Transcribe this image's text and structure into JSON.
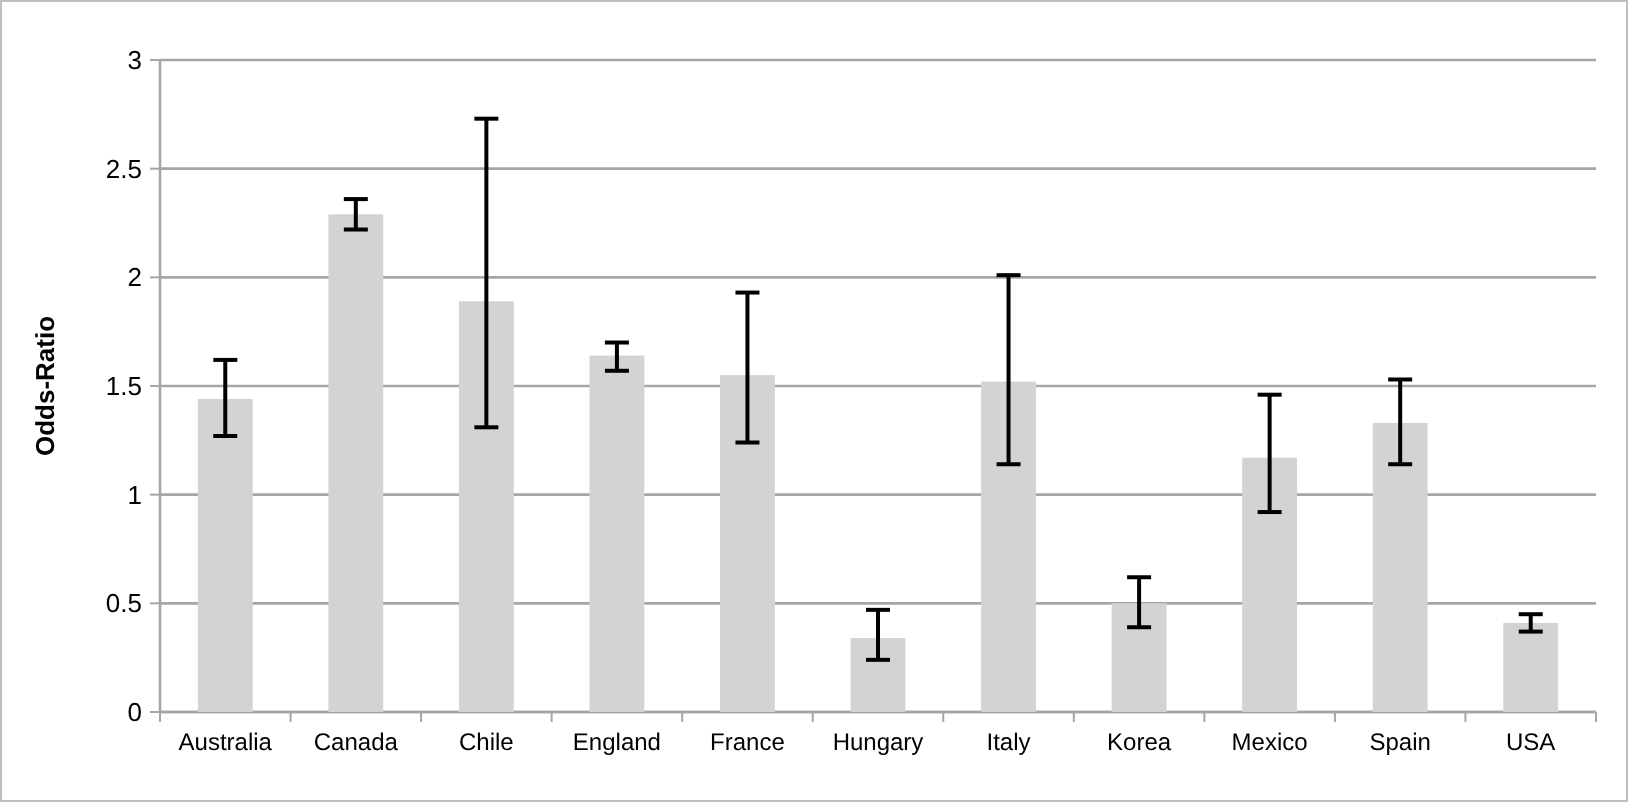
{
  "chart_data": {
    "type": "bar",
    "ylabel": "Odds-Ratio",
    "categories": [
      "Australia",
      "Canada",
      "Chile",
      "England",
      "France",
      "Hungary",
      "Italy",
      "Korea",
      "Mexico",
      "Spain",
      "USA"
    ],
    "values": [
      1.44,
      2.29,
      1.89,
      1.64,
      1.55,
      0.34,
      1.52,
      0.5,
      1.17,
      1.33,
      0.41
    ],
    "errors": [
      [
        1.27,
        1.62
      ],
      [
        2.22,
        2.36
      ],
      [
        1.31,
        2.73
      ],
      [
        1.57,
        1.7
      ],
      [
        1.24,
        1.93
      ],
      [
        0.24,
        0.47
      ],
      [
        1.14,
        2.01
      ],
      [
        0.39,
        0.62
      ],
      [
        0.92,
        1.46
      ],
      [
        1.14,
        1.53
      ],
      [
        0.37,
        0.45
      ]
    ],
    "color": "#d3d3d3",
    "ylim": [
      0,
      3
    ],
    "yticks": [
      0,
      0.5,
      1,
      1.5,
      2,
      2.5,
      3
    ],
    "grid": "y"
  }
}
